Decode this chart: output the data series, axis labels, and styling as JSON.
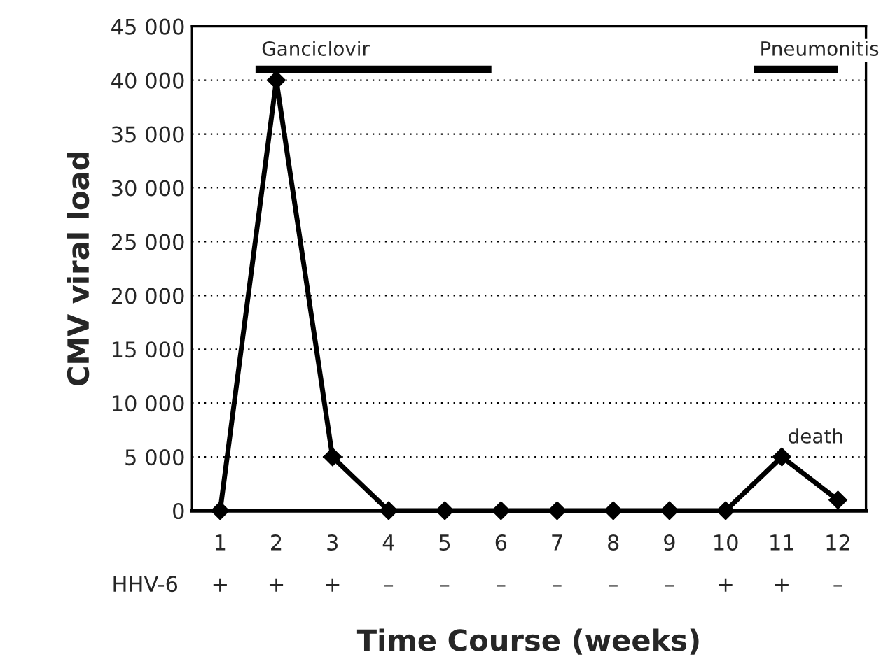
{
  "chart_data": {
    "type": "line",
    "xlabel": "Time Course (weeks)",
    "ylabel": "CMV viral load",
    "x": [
      1,
      2,
      3,
      4,
      5,
      6,
      7,
      8,
      9,
      10,
      11,
      12
    ],
    "series": [
      {
        "color": "#000000",
        "values": [
          0,
          40000,
          5000,
          0,
          0,
          0,
          0,
          0,
          0,
          0,
          5000,
          1000
        ]
      },
      {
        "color": "#000000",
        "marker": "none",
        "x": [
          1.63,
          5.83
        ],
        "values": [
          41000,
          41000
        ]
      },
      {
        "color": "#000000",
        "marker": "none",
        "x": [
          10.5,
          12.0
        ],
        "values": [
          41000,
          41000
        ]
      }
    ],
    "xlim": [
      0.5,
      12.5
    ],
    "xticks": [
      1,
      2,
      3,
      4,
      5,
      6,
      7,
      8,
      9,
      10,
      11,
      12
    ],
    "ylim": [
      0,
      45000
    ],
    "yticks": [
      0,
      {
        "value": 5000,
        "label": "5 000"
      },
      {
        "value": 10000,
        "label": "10 000"
      },
      {
        "value": 15000,
        "label": "15 000"
      },
      {
        "value": 20000,
        "label": "20 000"
      },
      {
        "value": 25000,
        "label": "25 000"
      },
      {
        "value": 30000,
        "label": "30 000"
      },
      {
        "value": 35000,
        "label": "35 000"
      },
      {
        "value": 40000,
        "label": "40 000"
      },
      {
        "value": 45000,
        "label": "45 000"
      }
    ],
    "grid": "y",
    "marker": "diamond",
    "line_style": "solid",
    "annotations": [
      {
        "text": "death",
        "x": 11,
        "y": 5000
      },
      {
        "text": "Ganciclovir",
        "x": 1.63,
        "y": 41000
      },
      {
        "text": "Pneumonitis",
        "x": 10.5,
        "y": 41000
      },
      "HHV-6",
      "+",
      "+",
      "+",
      "–",
      "–",
      "–",
      "–",
      "–",
      "–",
      "+",
      "+",
      "–"
    ]
  }
}
